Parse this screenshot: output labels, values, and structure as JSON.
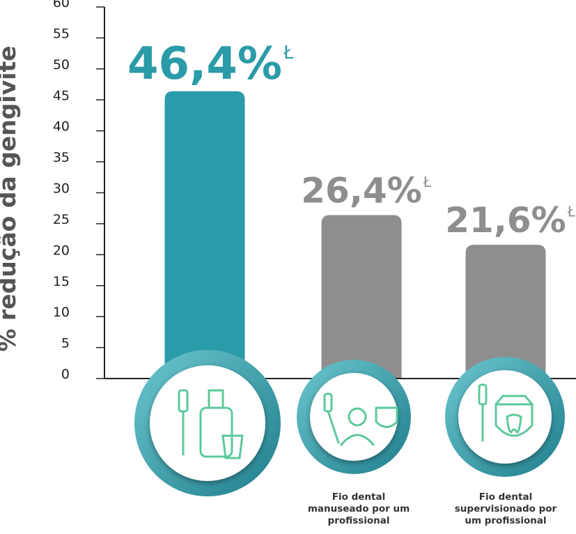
{
  "chart_data": {
    "type": "bar",
    "y_label": "% redução da gengivite",
    "categories": [
      null,
      "Fio dental manuseado por um profissional",
      "Fio dental supervisionado por um profissional"
    ],
    "values": [
      46.4,
      26.4,
      21.6
    ],
    "value_labels": [
      "46,4%",
      "26,4%",
      "21,6%"
    ],
    "value_label_marks": [
      "Ł",
      "Ł",
      "Ł"
    ],
    "colors": [
      "#2a9ba8",
      "#8e8e8e",
      "#8e8e8e"
    ],
    "ylim": [
      0,
      60
    ],
    "yticks": [
      0,
      5,
      10,
      15,
      20,
      25,
      30,
      35,
      40,
      45,
      50,
      55,
      60
    ]
  }
}
